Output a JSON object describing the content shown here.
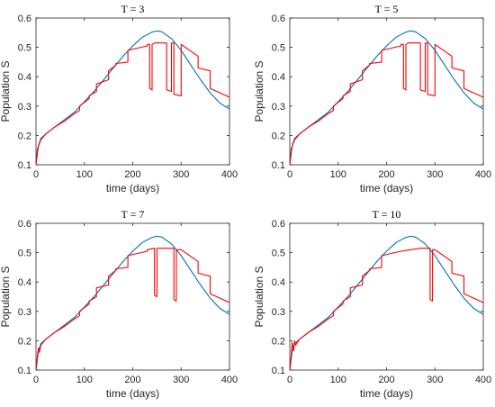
{
  "colors": {
    "blue": "#0072BD",
    "red": "#FF0000",
    "axis": "#262626"
  },
  "chart_data": [
    {
      "type": "line",
      "title": "T = 3",
      "xlabel": "time (days)",
      "ylabel": "Population S",
      "xlim": [
        0,
        400
      ],
      "ylim": [
        0.1,
        0.6
      ],
      "xticks": [
        "0",
        "100",
        "200",
        "300",
        "400"
      ],
      "yticks": [
        "0.1",
        "0.2",
        "0.3",
        "0.4",
        "0.5",
        "0.6"
      ],
      "series": [
        {
          "color": "#0072BD",
          "x": [
            0,
            5,
            10,
            20,
            40,
            60,
            80,
            100,
            120,
            140,
            160,
            180,
            200,
            220,
            240,
            250,
            260,
            280,
            300,
            320,
            340,
            360,
            380,
            400
          ],
          "y": [
            0.1,
            0.165,
            0.19,
            0.205,
            0.23,
            0.255,
            0.28,
            0.315,
            0.35,
            0.39,
            0.43,
            0.47,
            0.505,
            0.535,
            0.552,
            0.556,
            0.553,
            0.53,
            0.49,
            0.44,
            0.39,
            0.345,
            0.31,
            0.29
          ]
        },
        {
          "color": "#FF0000",
          "x": [
            0,
            3,
            10,
            20,
            40,
            60,
            80,
            90,
            90,
            110,
            110,
            125,
            125,
            150,
            150,
            165,
            165,
            190,
            190,
            230,
            230,
            235,
            235,
            240,
            240,
            245,
            245,
            270,
            270,
            280,
            280,
            285,
            285,
            300,
            300,
            335,
            335,
            360,
            360,
            400
          ],
          "y": [
            0.1,
            0.155,
            0.185,
            0.205,
            0.23,
            0.25,
            0.275,
            0.285,
            0.3,
            0.325,
            0.335,
            0.35,
            0.375,
            0.39,
            0.42,
            0.44,
            0.445,
            0.45,
            0.49,
            0.505,
            0.51,
            0.51,
            0.36,
            0.355,
            0.51,
            0.515,
            0.515,
            0.515,
            0.355,
            0.35,
            0.515,
            0.515,
            0.34,
            0.335,
            0.51,
            0.47,
            0.43,
            0.42,
            0.36,
            0.33
          ]
        }
      ]
    },
    {
      "type": "line",
      "title": "T = 5",
      "xlabel": "time (days)",
      "ylabel": "Population S",
      "xlim": [
        0,
        400
      ],
      "ylim": [
        0.1,
        0.6
      ],
      "xticks": [
        "0",
        "100",
        "200",
        "300",
        "400"
      ],
      "yticks": [
        "0.1",
        "0.2",
        "0.3",
        "0.4",
        "0.5",
        "0.6"
      ],
      "series": [
        {
          "color": "#0072BD",
          "x": [
            0,
            5,
            10,
            20,
            40,
            60,
            80,
            100,
            120,
            140,
            160,
            180,
            200,
            220,
            240,
            250,
            260,
            280,
            300,
            320,
            340,
            360,
            380,
            400
          ],
          "y": [
            0.1,
            0.165,
            0.19,
            0.205,
            0.23,
            0.255,
            0.28,
            0.315,
            0.35,
            0.39,
            0.43,
            0.47,
            0.505,
            0.535,
            0.552,
            0.556,
            0.553,
            0.53,
            0.49,
            0.44,
            0.39,
            0.345,
            0.31,
            0.29
          ]
        },
        {
          "color": "#FF0000",
          "x": [
            0,
            3,
            10,
            20,
            40,
            60,
            80,
            90,
            90,
            110,
            110,
            125,
            125,
            150,
            150,
            165,
            165,
            190,
            190,
            230,
            230,
            235,
            235,
            240,
            240,
            245,
            245,
            270,
            270,
            280,
            280,
            285,
            285,
            300,
            300,
            335,
            335,
            360,
            360,
            400
          ],
          "y": [
            0.1,
            0.155,
            0.185,
            0.205,
            0.23,
            0.25,
            0.275,
            0.285,
            0.3,
            0.325,
            0.335,
            0.35,
            0.375,
            0.39,
            0.42,
            0.44,
            0.445,
            0.45,
            0.49,
            0.505,
            0.51,
            0.51,
            0.36,
            0.355,
            0.51,
            0.515,
            0.515,
            0.515,
            0.355,
            0.35,
            0.515,
            0.515,
            0.34,
            0.335,
            0.51,
            0.47,
            0.43,
            0.42,
            0.36,
            0.33
          ]
        }
      ]
    },
    {
      "type": "line",
      "title": "T = 7",
      "xlabel": "time (days)",
      "ylabel": "Population S",
      "xlim": [
        0,
        400
      ],
      "ylim": [
        0.1,
        0.6
      ],
      "xticks": [
        "0",
        "100",
        "200",
        "300",
        "400"
      ],
      "yticks": [
        "0.1",
        "0.2",
        "0.3",
        "0.4",
        "0.5",
        "0.6"
      ],
      "series": [
        {
          "color": "#0072BD",
          "x": [
            0,
            5,
            10,
            20,
            40,
            60,
            80,
            100,
            120,
            140,
            160,
            180,
            200,
            220,
            240,
            250,
            260,
            280,
            300,
            320,
            340,
            360,
            380,
            400
          ],
          "y": [
            0.1,
            0.165,
            0.19,
            0.205,
            0.23,
            0.255,
            0.28,
            0.315,
            0.35,
            0.39,
            0.43,
            0.47,
            0.505,
            0.535,
            0.552,
            0.556,
            0.553,
            0.53,
            0.49,
            0.44,
            0.39,
            0.345,
            0.31,
            0.29
          ]
        },
        {
          "color": "#FF0000",
          "x": [
            0,
            3,
            5,
            7,
            10,
            20,
            40,
            60,
            80,
            90,
            90,
            110,
            110,
            125,
            125,
            150,
            150,
            165,
            165,
            190,
            190,
            230,
            230,
            245,
            245,
            250,
            250,
            270,
            270,
            285,
            285,
            290,
            290,
            300,
            300,
            335,
            335,
            360,
            360,
            400
          ],
          "y": [
            0.1,
            0.15,
            0.175,
            0.16,
            0.185,
            0.205,
            0.23,
            0.25,
            0.275,
            0.285,
            0.3,
            0.325,
            0.335,
            0.35,
            0.38,
            0.39,
            0.42,
            0.44,
            0.445,
            0.45,
            0.49,
            0.505,
            0.51,
            0.515,
            0.355,
            0.35,
            0.515,
            0.515,
            0.515,
            0.515,
            0.34,
            0.335,
            0.51,
            0.51,
            0.51,
            0.47,
            0.43,
            0.42,
            0.36,
            0.33
          ]
        }
      ]
    },
    {
      "type": "line",
      "title": "T = 10",
      "xlabel": "time (days)",
      "ylabel": "Population S",
      "xlim": [
        0,
        400
      ],
      "ylim": [
        0.1,
        0.6
      ],
      "xticks": [
        "0",
        "100",
        "200",
        "300",
        "400"
      ],
      "yticks": [
        "0.1",
        "0.2",
        "0.3",
        "0.4",
        "0.5",
        "0.6"
      ],
      "series": [
        {
          "color": "#0072BD",
          "x": [
            0,
            5,
            10,
            20,
            40,
            60,
            80,
            100,
            120,
            140,
            160,
            180,
            200,
            220,
            240,
            250,
            260,
            280,
            300,
            320,
            340,
            360,
            380,
            400
          ],
          "y": [
            0.1,
            0.165,
            0.19,
            0.205,
            0.23,
            0.255,
            0.28,
            0.315,
            0.35,
            0.39,
            0.43,
            0.47,
            0.505,
            0.535,
            0.552,
            0.556,
            0.553,
            0.53,
            0.49,
            0.44,
            0.39,
            0.345,
            0.31,
            0.29
          ]
        },
        {
          "color": "#FF0000",
          "x": [
            0,
            3,
            5,
            8,
            10,
            12,
            20,
            40,
            60,
            80,
            90,
            90,
            110,
            110,
            125,
            125,
            150,
            150,
            165,
            165,
            190,
            190,
            230,
            250,
            270,
            290,
            290,
            295,
            295,
            300,
            335,
            335,
            360,
            360,
            400
          ],
          "y": [
            0.1,
            0.15,
            0.195,
            0.165,
            0.2,
            0.185,
            0.205,
            0.23,
            0.25,
            0.275,
            0.285,
            0.3,
            0.325,
            0.335,
            0.35,
            0.38,
            0.39,
            0.42,
            0.44,
            0.445,
            0.45,
            0.49,
            0.505,
            0.51,
            0.515,
            0.515,
            0.34,
            0.335,
            0.51,
            0.51,
            0.47,
            0.43,
            0.42,
            0.36,
            0.33
          ]
        }
      ]
    }
  ]
}
